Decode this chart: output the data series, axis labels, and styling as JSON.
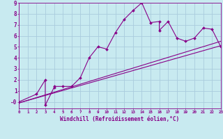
{
  "xlabel": "Windchill (Refroidissement éolien,°C)",
  "bg_color": "#c8eaf0",
  "line_color": "#880088",
  "grid_color": "#aaccdd",
  "xmin": 0,
  "xmax": 23,
  "ymin": -0.6,
  "ymax": 9,
  "line1_x": [
    0,
    2,
    3,
    3,
    4,
    4,
    5,
    6,
    7,
    8,
    9,
    10,
    11,
    12,
    13,
    14,
    15,
    16,
    16,
    17,
    18,
    19,
    20,
    21,
    22,
    23
  ],
  "line1_y": [
    0,
    0.7,
    2.0,
    -0.3,
    1.3,
    1.4,
    1.4,
    1.4,
    2.2,
    4.0,
    5.0,
    4.8,
    6.3,
    7.5,
    8.3,
    9.0,
    7.2,
    7.3,
    6.5,
    7.3,
    5.8,
    5.5,
    5.8,
    6.7,
    6.6,
    5.0
  ],
  "line2_x": [
    0,
    23
  ],
  "line2_y": [
    -0.1,
    5.1
  ],
  "line3_x": [
    0,
    23
  ],
  "line3_y": [
    -0.1,
    5.5
  ]
}
